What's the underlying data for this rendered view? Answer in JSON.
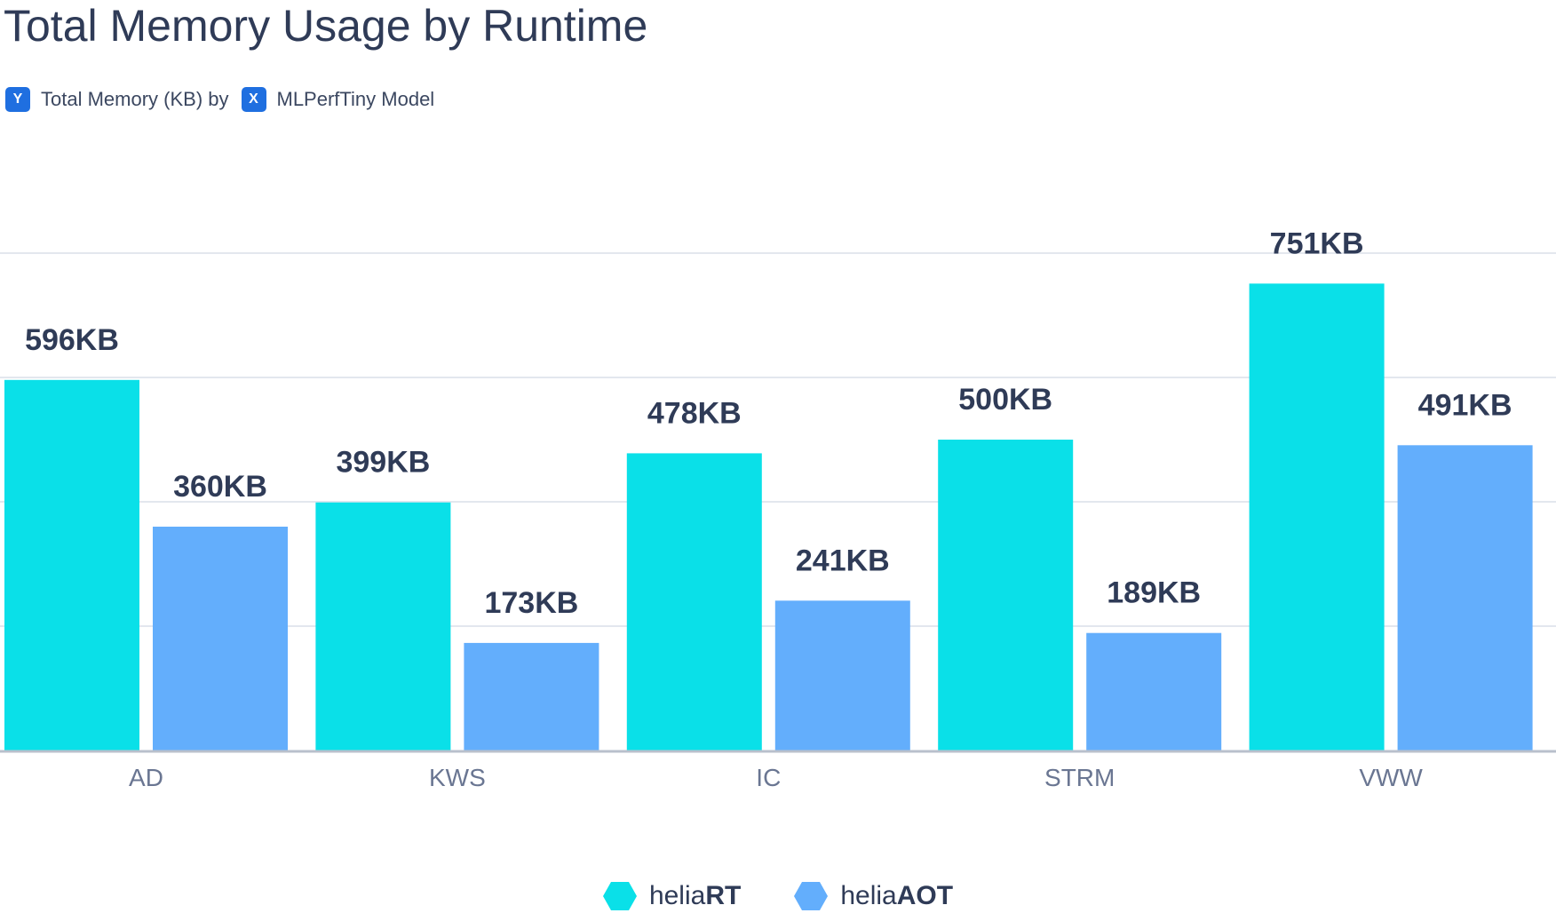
{
  "title": "Total Memory Usage by Runtime",
  "subtitle": {
    "y_badge": "Y",
    "y_text": "Total Memory (KB) by",
    "x_badge": "X",
    "x_text": "MLPerfTiny Model"
  },
  "colors": {
    "heliaRT": "#0ae0e8",
    "heliaAOT": "#63aefc"
  },
  "legend": [
    {
      "prefix": "helia",
      "bold": "RT"
    },
    {
      "prefix": "helia",
      "bold": "AOT"
    }
  ],
  "chart_data": {
    "type": "bar",
    "title": "Total Memory Usage by Runtime",
    "xlabel": "MLPerfTiny Model",
    "ylabel": "Total Memory (KB)",
    "categories": [
      "AD",
      "KWS",
      "IC",
      "STRM",
      "VWW"
    ],
    "series": [
      {
        "name": "heliaRT",
        "values": [
          596,
          399,
          478,
          500,
          751
        ],
        "labels": [
          "596KB",
          "399KB",
          "478KB",
          "500KB",
          "751KB"
        ]
      },
      {
        "name": "heliaAOT",
        "values": [
          360,
          173,
          241,
          189,
          491
        ],
        "labels": [
          "360KB",
          "173KB",
          "241KB",
          "189KB",
          "491KB"
        ]
      }
    ],
    "ylim": [
      0,
      800
    ],
    "grid": true,
    "legend_position": "bottom-center"
  }
}
